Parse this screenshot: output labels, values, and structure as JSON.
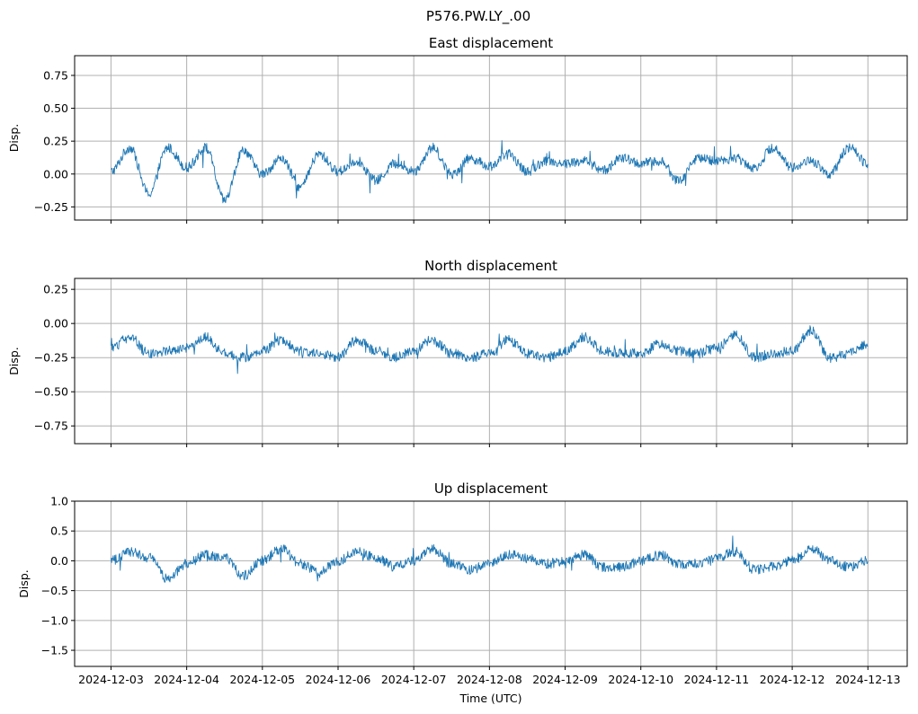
{
  "figure": {
    "suptitle": "P576.PW.LY_.00",
    "xlabel": "Time (UTC)",
    "line_color": "#1f77b4",
    "grid_color": "#b0b0b0"
  },
  "chart_data": [
    {
      "type": "line",
      "title": "East displacement",
      "ylabel": "Disp.",
      "xlim": [
        "2024-12-02T12:28",
        "2024-12-13T12:28"
      ],
      "ylim": [
        -0.35,
        0.9
      ],
      "yticks": [
        -0.25,
        0.0,
        0.25,
        0.5,
        0.75
      ],
      "ytick_labels": [
        "−0.25",
        "0.00",
        "0.25",
        "0.50",
        "0.75"
      ],
      "xtick_labels": [],
      "grid": true,
      "series": [
        {
          "x": [
            "2024-12-03T00:00",
            "2024-12-03T06:00",
            "2024-12-03T12:00",
            "2024-12-03T18:00",
            "2024-12-04T00:00",
            "2024-12-04T06:00",
            "2024-12-04T12:00",
            "2024-12-04T18:00",
            "2024-12-05T00:00",
            "2024-12-05T06:00",
            "2024-12-05T12:00",
            "2024-12-05T18:00",
            "2024-12-06T00:00",
            "2024-12-06T06:00",
            "2024-12-06T12:00",
            "2024-12-06T18:00",
            "2024-12-07T00:00",
            "2024-12-07T06:00",
            "2024-12-07T12:00",
            "2024-12-07T18:00",
            "2024-12-08T00:00",
            "2024-12-08T06:00",
            "2024-12-08T12:00",
            "2024-12-08T18:00",
            "2024-12-09T00:00",
            "2024-12-09T06:00",
            "2024-12-09T12:00",
            "2024-12-09T18:00",
            "2024-12-10T00:00",
            "2024-12-10T06:00",
            "2024-12-10T12:00",
            "2024-12-10T18:00",
            "2024-12-11T00:00",
            "2024-12-11T06:00",
            "2024-12-11T12:00",
            "2024-12-11T18:00",
            "2024-12-12T00:00",
            "2024-12-12T06:00",
            "2024-12-12T12:00",
            "2024-12-12T18:00",
            "2024-12-13T00:00"
          ],
          "y": [
            0.02,
            0.2,
            -0.15,
            0.2,
            0.05,
            0.2,
            -0.2,
            0.18,
            0.0,
            0.12,
            -0.1,
            0.15,
            0.02,
            0.1,
            -0.05,
            0.08,
            0.02,
            0.2,
            0.0,
            0.12,
            0.06,
            0.15,
            0.02,
            0.1,
            0.08,
            0.1,
            0.03,
            0.12,
            0.08,
            0.1,
            -0.05,
            0.12,
            0.1,
            0.12,
            0.05,
            0.2,
            0.05,
            0.1,
            0.0,
            0.2,
            0.08
          ]
        }
      ]
    },
    {
      "type": "line",
      "title": "North displacement",
      "ylabel": "Disp.",
      "xlim": [
        "2024-12-02T12:28",
        "2024-12-13T12:28"
      ],
      "ylim": [
        -0.88,
        0.33
      ],
      "yticks": [
        -0.75,
        -0.5,
        -0.25,
        0.0,
        0.25
      ],
      "ytick_labels": [
        "−0.75",
        "−0.50",
        "−0.25",
        "0.00",
        "0.25"
      ],
      "xtick_labels": [],
      "grid": true,
      "series": [
        {
          "x": [
            "2024-12-03T00:00",
            "2024-12-03T06:00",
            "2024-12-03T12:00",
            "2024-12-03T18:00",
            "2024-12-04T00:00",
            "2024-12-04T06:00",
            "2024-12-04T12:00",
            "2024-12-04T18:00",
            "2024-12-05T00:00",
            "2024-12-05T06:00",
            "2024-12-05T12:00",
            "2024-12-05T18:00",
            "2024-12-06T00:00",
            "2024-12-06T06:00",
            "2024-12-06T12:00",
            "2024-12-06T18:00",
            "2024-12-07T00:00",
            "2024-12-07T06:00",
            "2024-12-07T12:00",
            "2024-12-07T18:00",
            "2024-12-08T00:00",
            "2024-12-08T06:00",
            "2024-12-08T12:00",
            "2024-12-08T18:00",
            "2024-12-09T00:00",
            "2024-12-09T06:00",
            "2024-12-09T12:00",
            "2024-12-09T18:00",
            "2024-12-10T00:00",
            "2024-12-10T06:00",
            "2024-12-10T12:00",
            "2024-12-10T18:00",
            "2024-12-11T00:00",
            "2024-12-11T06:00",
            "2024-12-11T12:00",
            "2024-12-11T18:00",
            "2024-12-12T00:00",
            "2024-12-12T06:00",
            "2024-12-12T12:00",
            "2024-12-12T18:00",
            "2024-12-13T00:00"
          ],
          "y": [
            -0.18,
            -0.1,
            -0.22,
            -0.2,
            -0.18,
            -0.1,
            -0.22,
            -0.25,
            -0.2,
            -0.12,
            -0.2,
            -0.22,
            -0.25,
            -0.12,
            -0.2,
            -0.25,
            -0.2,
            -0.12,
            -0.22,
            -0.25,
            -0.22,
            -0.12,
            -0.22,
            -0.25,
            -0.2,
            -0.1,
            -0.2,
            -0.22,
            -0.22,
            -0.15,
            -0.2,
            -0.22,
            -0.18,
            -0.08,
            -0.25,
            -0.22,
            -0.2,
            -0.05,
            -0.25,
            -0.22,
            -0.15
          ]
        }
      ]
    },
    {
      "type": "line",
      "title": "Up displacement",
      "ylabel": "Disp.",
      "xlim": [
        "2024-12-02T12:28",
        "2024-12-13T12:28"
      ],
      "ylim": [
        -1.77,
        1.0
      ],
      "yticks": [
        -1.5,
        -1.0,
        -0.5,
        0.0,
        0.5,
        1.0
      ],
      "ytick_labels": [
        "−1.5",
        "−1.0",
        "−0.5",
        "0.0",
        "0.5",
        "1.0"
      ],
      "xtick_labels": [
        "2024-12-03",
        "2024-12-04",
        "2024-12-05",
        "2024-12-06",
        "2024-12-07",
        "2024-12-08",
        "2024-12-09",
        "2024-12-10",
        "2024-12-11",
        "2024-12-12",
        "2024-12-13"
      ],
      "grid": true,
      "series": [
        {
          "x": [
            "2024-12-03T00:00",
            "2024-12-03T06:00",
            "2024-12-03T12:00",
            "2024-12-03T18:00",
            "2024-12-04T00:00",
            "2024-12-04T06:00",
            "2024-12-04T12:00",
            "2024-12-04T18:00",
            "2024-12-05T00:00",
            "2024-12-05T06:00",
            "2024-12-05T12:00",
            "2024-12-05T18:00",
            "2024-12-06T00:00",
            "2024-12-06T06:00",
            "2024-12-06T12:00",
            "2024-12-06T18:00",
            "2024-12-07T00:00",
            "2024-12-07T06:00",
            "2024-12-07T12:00",
            "2024-12-07T18:00",
            "2024-12-08T00:00",
            "2024-12-08T06:00",
            "2024-12-08T12:00",
            "2024-12-08T18:00",
            "2024-12-09T00:00",
            "2024-12-09T06:00",
            "2024-12-09T12:00",
            "2024-12-09T18:00",
            "2024-12-10T00:00",
            "2024-12-10T06:00",
            "2024-12-10T12:00",
            "2024-12-10T18:00",
            "2024-12-11T00:00",
            "2024-12-11T06:00",
            "2024-12-11T12:00",
            "2024-12-11T18:00",
            "2024-12-12T00:00",
            "2024-12-12T06:00",
            "2024-12-12T12:00",
            "2024-12-12T18:00",
            "2024-12-13T00:00"
          ],
          "y": [
            0.0,
            0.15,
            0.05,
            -0.3,
            -0.05,
            0.1,
            0.05,
            -0.25,
            0.0,
            0.2,
            -0.05,
            -0.2,
            0.0,
            0.15,
            0.05,
            -0.1,
            0.0,
            0.2,
            -0.05,
            -0.15,
            -0.05,
            0.1,
            0.05,
            -0.05,
            0.0,
            0.1,
            -0.1,
            -0.1,
            0.0,
            0.1,
            -0.05,
            -0.05,
            0.05,
            0.15,
            -0.15,
            -0.1,
            0.0,
            0.2,
            0.0,
            -0.1,
            0.0
          ]
        }
      ]
    }
  ]
}
